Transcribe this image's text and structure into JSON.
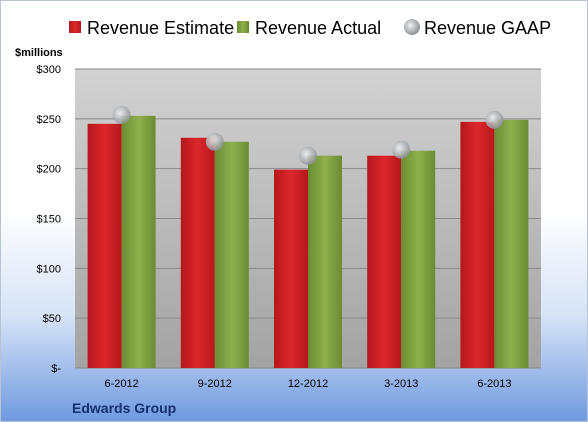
{
  "chart_data": {
    "type": "bar",
    "unit_label": "$millions",
    "categories": [
      "6-2012",
      "9-2012",
      "12-2012",
      "3-2013",
      "6-2013"
    ],
    "series": [
      {
        "name": "Revenue Estimate",
        "values": [
          245,
          231,
          199,
          213,
          247
        ],
        "color": "#cc1f24"
      },
      {
        "name": "Revenue Actual",
        "values": [
          253,
          227,
          213,
          218,
          249
        ],
        "color": "#7d9e3e"
      },
      {
        "name": "Revenue GAAP",
        "values": [
          254,
          227,
          213,
          219,
          249
        ],
        "marker": "circle",
        "color": "#c2c4c8"
      }
    ],
    "y_ticks": [
      {
        "value": 0,
        "label": "$-"
      },
      {
        "value": 50,
        "label": "$50"
      },
      {
        "value": 100,
        "label": "$100"
      },
      {
        "value": 150,
        "label": "$150"
      },
      {
        "value": 200,
        "label": "$200"
      },
      {
        "value": 250,
        "label": "$250"
      },
      {
        "value": 300,
        "label": "$300"
      }
    ],
    "ylim": [
      0,
      300
    ],
    "grid": true,
    "legend_position": "top"
  },
  "company": "Edwards Group"
}
